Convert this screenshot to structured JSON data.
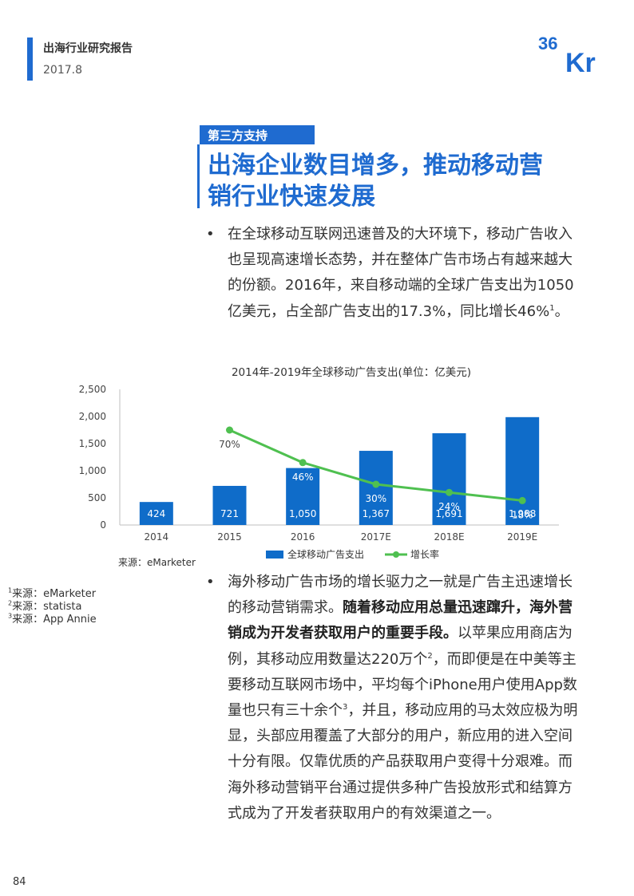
{
  "header": {
    "title": "出海行业研究报告",
    "date": "2017.8"
  },
  "logo": {
    "text_top": "36",
    "text_bottom": "Kr",
    "color": "#1f6bd0"
  },
  "section": {
    "tag": "第三方支持",
    "title_line1": "出海企业数目增多，推动移动营",
    "title_line2": "销行业快速发展"
  },
  "para1": {
    "bullet": "•",
    "text": "在全球移动互联网迅速普及的大环境下，移动广告收入也呈现高速增长态势，并在整体广告市场占有越来越大的份额。2016年，来自移动端的全球广告支出为1050亿美元，占全部广告支出的17.3%，同比增长46%",
    "sup": "1",
    "end": "。"
  },
  "chart_data": {
    "type": "bar",
    "title": "2014年-2019年全球移动广告支出(单位：亿美元)",
    "categories": [
      "2014",
      "2015",
      "2016",
      "2017E",
      "2018E",
      "2019E"
    ],
    "series": [
      {
        "name": "全球移动广告支出",
        "type": "bar",
        "values": [
          424,
          721,
          1050,
          1367,
          1691,
          1988
        ],
        "labels": [
          "424",
          "721",
          "1,050",
          "1,367",
          "1,691",
          "1,988"
        ],
        "color": "#0f6cc9"
      },
      {
        "name": "增长率",
        "type": "line",
        "values": [
          null,
          70,
          46,
          30,
          24,
          18
        ],
        "labels": [
          "",
          "70%",
          "46%",
          "30%",
          "24%",
          "18%"
        ],
        "color": "#4fc050"
      }
    ],
    "ylim": [
      0,
      2500
    ],
    "yticks": [
      "0",
      "500",
      "1,000",
      "1,500",
      "2,000",
      "2,500"
    ],
    "ytick_values": [
      0,
      500,
      1000,
      1500,
      2000,
      2500
    ],
    "y2lim": [
      0,
      100
    ],
    "grid": false,
    "legend": "bottom-center"
  },
  "source": "来源：eMarketer",
  "footnotes": [
    {
      "num": "1",
      "text": "来源：eMarketer"
    },
    {
      "num": "2",
      "text": "来源：statista"
    },
    {
      "num": "3",
      "text": "来源：App Annie"
    }
  ],
  "para2": {
    "bullet": "•",
    "p1": "海外移动广告市场的增长驱力之一就是广告主迅速增长的移动营销需求。",
    "bold": "随着移动应用总量迅速蹿升，海外营销成为开发者获取用户的重要手段。",
    "p2": "以苹果应用商店为例，其移动应用数量达220万个",
    "sup1": "2",
    "p3": "，而即便是在中美等主要移动互联网市场中，平均每个iPhone用户使用App数量也只有三十余个",
    "sup2": "3",
    "p4": "，并且，移动应用的马太效应极为明显，头部应用覆盖了大部分的用户，新应用的进入空间十分有限。仅靠优质的产品获取用户变得十分艰难。而海外移动营销平台通过提供多种广告投放形式和结算方式成为了开发者获取用户的有效渠道之一。"
  },
  "page_number": "84"
}
